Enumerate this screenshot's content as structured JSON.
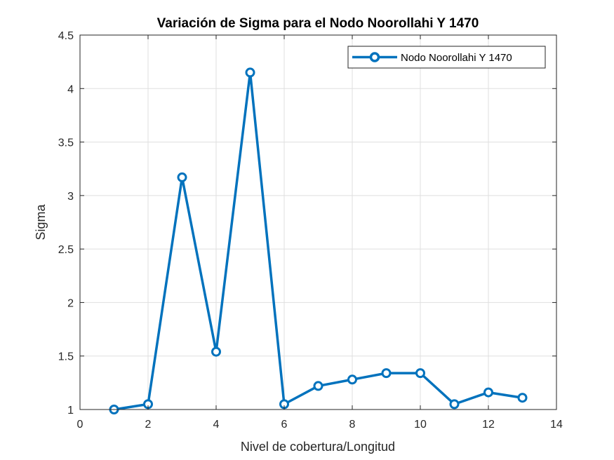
{
  "chart_data": {
    "type": "line",
    "title": "Variación de Sigma para el Nodo Noorollahi Y 1470",
    "xlabel": "Nivel de cobertura/Longitud",
    "ylabel": "Sigma",
    "xlim": [
      0,
      14
    ],
    "ylim": [
      1,
      4.5
    ],
    "xticks": [
      "0",
      "2",
      "4",
      "6",
      "8",
      "10",
      "12",
      "14"
    ],
    "yticks": [
      "1",
      "1.5",
      "2",
      "2.5",
      "3",
      "3.5",
      "4",
      "4.5"
    ],
    "grid": true,
    "legend_position": "top-right",
    "series": [
      {
        "name": "Nodo Noorollahi Y 1470",
        "color": "#0072BD",
        "marker": "circle",
        "x": [
          1,
          2,
          3,
          4,
          5,
          6,
          7,
          8,
          9,
          10,
          11,
          12,
          13
        ],
        "y": [
          1.0,
          1.05,
          3.17,
          1.54,
          4.15,
          1.05,
          1.22,
          1.28,
          1.34,
          1.34,
          1.05,
          1.16,
          1.11
        ]
      }
    ]
  }
}
